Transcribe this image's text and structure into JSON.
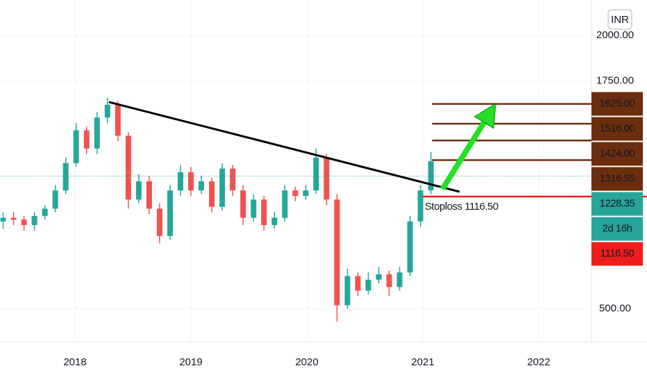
{
  "chart_data": {
    "type": "candlestick",
    "currency": "INR",
    "x": [
      2017.38,
      2017.47,
      2017.56,
      2017.65,
      2017.74,
      2017.83,
      2017.92,
      2018.01,
      2018.1,
      2018.19,
      2018.28,
      2018.37,
      2018.46,
      2018.55,
      2018.64,
      2018.73,
      2018.82,
      2018.91,
      2019.0,
      2019.09,
      2019.18,
      2019.27,
      2019.36,
      2019.45,
      2019.54,
      2019.63,
      2019.72,
      2019.81,
      2019.9,
      2019.99,
      2020.08,
      2020.17,
      2020.26,
      2020.35,
      2020.44,
      2020.53,
      2020.62,
      2020.71,
      2020.8,
      2020.89,
      2020.98,
      2021.07
    ],
    "open": [
      980,
      1000,
      990,
      960,
      1010,
      1050,
      1150,
      1300,
      1480,
      1380,
      1550,
      1620,
      1450,
      1100,
      1200,
      1050,
      900,
      1150,
      1250,
      1150,
      1200,
      1060,
      1270,
      1150,
      1000,
      1100,
      960,
      1000,
      1150,
      1120,
      1150,
      1330,
      1100,
      520,
      680,
      600,
      660,
      690,
      620,
      700,
      980,
      1150
    ],
    "high": [
      1030,
      1030,
      1010,
      1030,
      1070,
      1180,
      1330,
      1520,
      1500,
      1580,
      1660,
      1640,
      1470,
      1240,
      1230,
      1080,
      1180,
      1290,
      1280,
      1230,
      1220,
      1300,
      1290,
      1180,
      1130,
      1120,
      1030,
      1180,
      1170,
      1180,
      1380,
      1350,
      1130,
      720,
      700,
      700,
      730,
      710,
      730,
      1010,
      1180,
      1360
    ],
    "low": [
      940,
      960,
      930,
      930,
      990,
      1030,
      1130,
      1280,
      1350,
      1350,
      1520,
      1420,
      1050,
      1080,
      1020,
      860,
      880,
      1120,
      1120,
      1130,
      1030,
      1040,
      1120,
      960,
      980,
      930,
      940,
      980,
      1090,
      1100,
      1130,
      1070,
      430,
      500,
      570,
      580,
      640,
      570,
      600,
      680,
      950,
      1130
    ],
    "close": [
      1000,
      990,
      960,
      1010,
      1050,
      1150,
      1300,
      1480,
      1380,
      1550,
      1620,
      1450,
      1100,
      1200,
      1050,
      900,
      1150,
      1250,
      1150,
      1200,
      1060,
      1270,
      1150,
      1000,
      1100,
      960,
      1000,
      1150,
      1120,
      1150,
      1330,
      1100,
      520,
      680,
      600,
      660,
      690,
      620,
      700,
      980,
      1150,
      1310
    ],
    "up_color": "#26a69a",
    "down_color": "#ef5350",
    "xlim": [
      2017.353,
      2022.455
    ],
    "xticks": [
      2018,
      2019,
      2020,
      2021,
      2022
    ],
    "ylim": [
      320,
      2195
    ],
    "yticks": [
      {
        "value": 500,
        "label": "500.00"
      },
      {
        "value": 1750,
        "label": "1750.00"
      },
      {
        "value": 2000,
        "label": "2000.00"
      }
    ],
    "grid": true,
    "trendline": {
      "x": [
        2018.293,
        2021.317
      ],
      "y": [
        1635,
        1143
      ],
      "color": "#000000"
    },
    "arrow": {
      "x": [
        2021.17,
        2021.63
      ],
      "y": [
        1158,
        1627
      ],
      "color": "#22e022"
    },
    "resistance": {
      "start": 2021.08,
      "color": "#6b2f0f",
      "values": [
        1625,
        1516,
        1424,
        1316.55
      ],
      "value_labels": [
        "1625.00",
        "1516.00",
        "1424.00",
        "1316.55"
      ]
    },
    "last_price": {
      "value": 1228.35,
      "label": "1228.35",
      "countdown": "2d 16h",
      "color": "#26a69a"
    },
    "stoploss": {
      "value": 1116.5,
      "label": "1116.50",
      "start": 2021.0,
      "text": "Stoploss 1116.50",
      "color": "#f01c1c"
    }
  }
}
